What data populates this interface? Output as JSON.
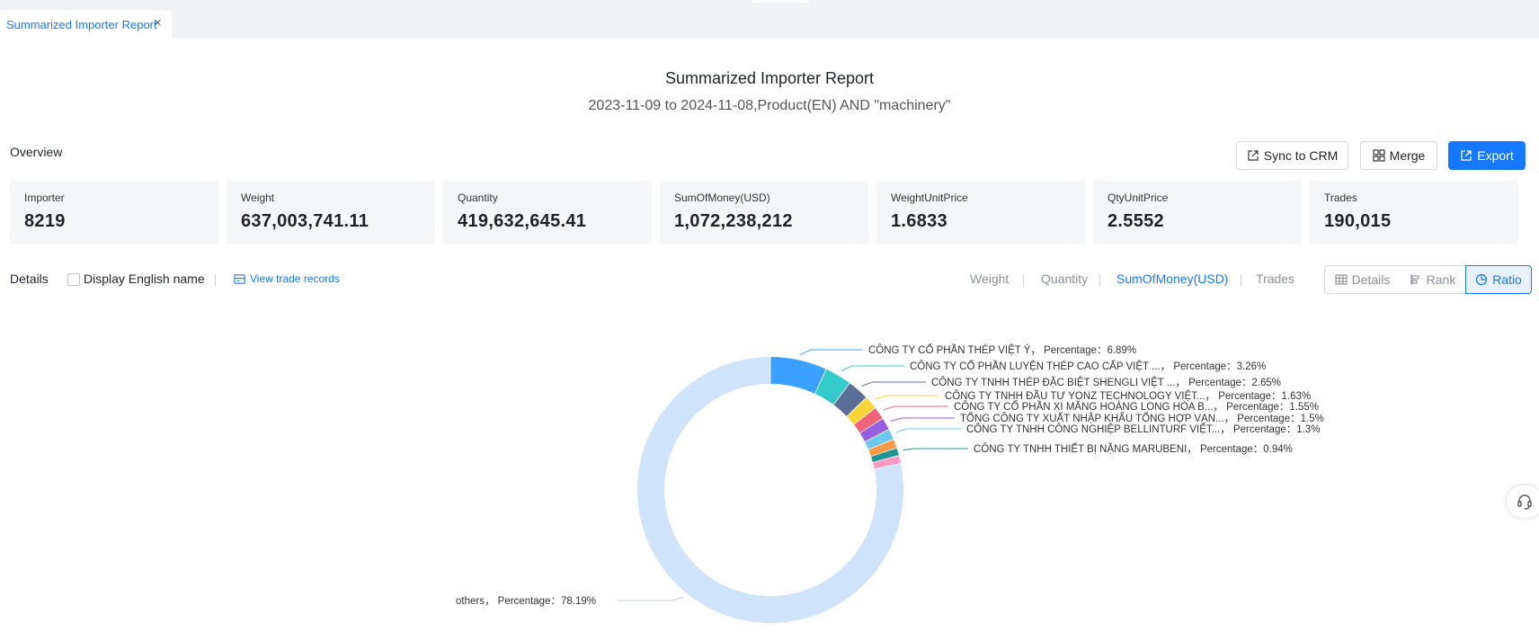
{
  "tab": {
    "label": "Summarized Importer Report"
  },
  "report": {
    "title": "Summarized Importer Report",
    "subtitle": "2023-11-09 to 2024-11-08,Product(EN) AND \"machinery\""
  },
  "overview": {
    "label": "Overview",
    "buttons": {
      "sync": "Sync to CRM",
      "merge": "Merge",
      "export": "Export"
    },
    "cards": [
      {
        "label": "Importer",
        "value": "8219"
      },
      {
        "label": "Weight",
        "value": "637,003,741.11"
      },
      {
        "label": "Quantity",
        "value": "419,632,645.41"
      },
      {
        "label": "SumOfMoney(USD)",
        "value": "1,072,238,212"
      },
      {
        "label": "WeightUnitPrice",
        "value": "1.6833"
      },
      {
        "label": "QtyUnitPrice",
        "value": "2.5552"
      },
      {
        "label": "Trades",
        "value": "190,015"
      }
    ]
  },
  "details": {
    "label": "Details",
    "display_english": "Display English name",
    "view_trade_records": "View trade records",
    "metrics": [
      "Weight",
      "Quantity",
      "SumOfMoney(USD)",
      "Trades"
    ],
    "active_metric": "SumOfMoney(USD)",
    "views": [
      "Details",
      "Rank",
      "Ratio"
    ],
    "active_view": "Ratio"
  },
  "chart_data": {
    "type": "pie",
    "variant": "donut",
    "percentage_label": "Percentage",
    "slices": [
      {
        "name": "CÔNG TY CỔ PHẦN THÉP VIỆT Ý",
        "value": 6.89,
        "color": "#3ba1ff"
      },
      {
        "name": "CÔNG TY CỔ PHẦN LUYỆN THÉP CAO CẤP VIỆT ...",
        "value": 3.26,
        "color": "#36cbcb"
      },
      {
        "name": "CÔNG TY TNHH THÉP ĐẶC BIỆT SHENGLI VIỆT ...",
        "value": 2.65,
        "color": "#5b6e96"
      },
      {
        "name": "CÔNG TY TNHH ĐẦU TƯ YONZ TECHNOLOGY VIỆT...",
        "value": 1.63,
        "color": "#fad337"
      },
      {
        "name": "CÔNG TY CỔ PHẦN XI MĂNG HOÀNG LONG HÒA B...",
        "value": 1.55,
        "color": "#f2637b"
      },
      {
        "name": "TỔNG CÔNG TY XUẤT NHẬP KHẨU TỔNG HỢP VẠN...",
        "value": 1.5,
        "color": "#975fe4"
      },
      {
        "name": "CÔNG TY TNHH CÔNG NGHIỆP BELLINTURF VIỆT...",
        "value": 1.3,
        "color": "#6dc8ec"
      },
      {
        "name": "",
        "value": 1.1,
        "color": "#ff9845"
      },
      {
        "name": "CÔNG TY TNHH THIẾT BỊ NẶNG MARUBENI",
        "value": 0.94,
        "color": "#1e9493"
      },
      {
        "name": "",
        "value": 1.0,
        "color": "#ff99c3"
      },
      {
        "name": "others",
        "value": 78.19,
        "color": "#cfe3fb"
      }
    ]
  }
}
